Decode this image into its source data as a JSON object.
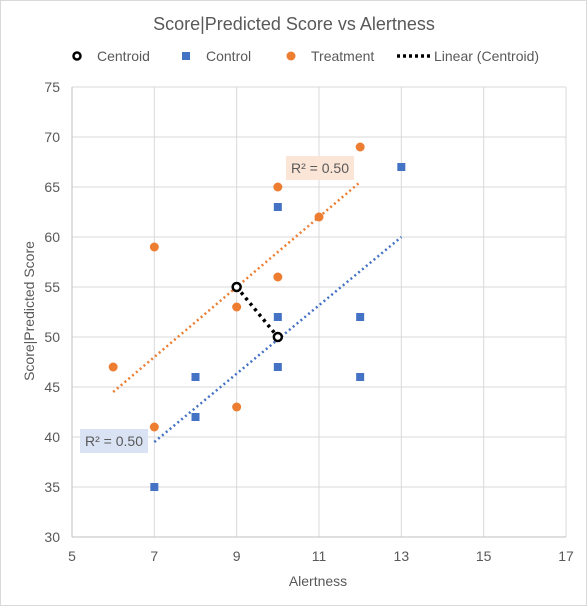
{
  "chart_data": {
    "type": "scatter",
    "title": "Score|Predicted Score vs Alertness",
    "xlabel": "Alertness",
    "ylabel": "Score|Predicted Score",
    "xlim": [
      5,
      17
    ],
    "ylim": [
      30,
      75
    ],
    "x_ticks": [
      5,
      7,
      9,
      11,
      13,
      15,
      17
    ],
    "y_ticks": [
      30,
      35,
      40,
      45,
      50,
      55,
      60,
      65,
      70,
      75
    ],
    "x_tick_labels": [
      "5",
      "7",
      "9",
      "11",
      "13",
      "15",
      "17"
    ],
    "y_tick_labels": [
      "30",
      "35",
      "40",
      "45",
      "50",
      "55",
      "60",
      "65",
      "70",
      "75"
    ],
    "grid": true,
    "legend_position": "top",
    "series": [
      {
        "name": "Centroid",
        "marker": "circle-hollow",
        "color": "#000000",
        "points": [
          [
            9,
            55
          ],
          [
            10,
            50
          ]
        ]
      },
      {
        "name": "Control",
        "marker": "square",
        "color": "#4472C4",
        "points": [
          [
            7,
            35
          ],
          [
            8,
            42
          ],
          [
            8,
            46
          ],
          [
            10,
            47
          ],
          [
            10,
            52
          ],
          [
            10,
            63
          ],
          [
            12,
            46
          ],
          [
            12,
            52
          ],
          [
            13,
            67
          ]
        ]
      },
      {
        "name": "Treatment",
        "marker": "circle",
        "color": "#ED7D31",
        "points": [
          [
            6,
            47
          ],
          [
            7,
            41
          ],
          [
            7,
            59
          ],
          [
            9,
            43
          ],
          [
            9,
            53
          ],
          [
            10,
            56
          ],
          [
            10,
            65
          ],
          [
            11,
            62
          ],
          [
            12,
            69
          ]
        ]
      },
      {
        "name": "Linear (Centroid)",
        "marker": "dotted-line",
        "color": "#000000",
        "line": [
          [
            9,
            55
          ],
          [
            10,
            50
          ]
        ]
      }
    ],
    "trendlines": [
      {
        "series": "Treatment",
        "color": "#ED7D31",
        "from": [
          6,
          44.5
        ],
        "to": [
          12,
          65.5
        ],
        "r2_label": "R² = 0.50",
        "label_bg": "#FBE5D6"
      },
      {
        "series": "Control",
        "color": "#4472C4",
        "from": [
          7,
          39.5
        ],
        "to": [
          13,
          60
        ],
        "r2_label": "R² = 0.50",
        "label_bg": "#DAE3F3"
      }
    ]
  }
}
